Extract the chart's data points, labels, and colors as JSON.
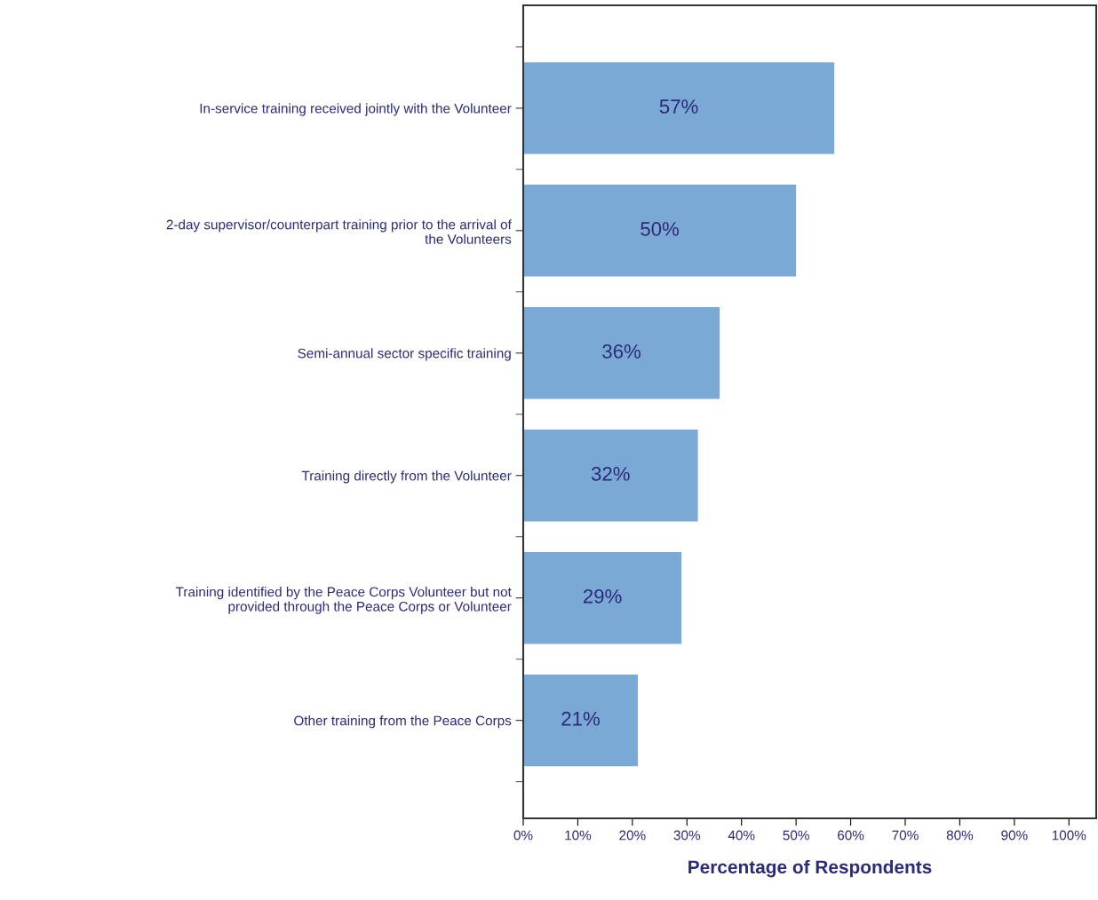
{
  "chart_data": {
    "type": "bar",
    "orientation": "horizontal",
    "categories": [
      "In-service training received jointly with the Volunteer",
      "2-day supervisor/counterpart training prior to the arrival of\nthe Volunteers",
      "Semi-annual sector specific training",
      "Training directly from the Volunteer",
      "Training identified by the Peace Corps Volunteer but not\nprovided through the Peace Corps or Volunteer",
      "Other training from the Peace Corps"
    ],
    "values": [
      57,
      50,
      36,
      32,
      29,
      21
    ],
    "value_labels": [
      "57%",
      "50%",
      "36%",
      "32%",
      "29%",
      "21%"
    ],
    "color": "#7ba9d6",
    "xlabel": "Percentage of Respondents",
    "xlim": [
      0,
      105
    ],
    "xticks": [
      {
        "value": 0,
        "label": "0%"
      },
      {
        "value": 10,
        "label": "10%"
      },
      {
        "value": 20,
        "label": "20%"
      },
      {
        "value": 30,
        "label": "30%"
      },
      {
        "value": 40,
        "label": "40%"
      },
      {
        "value": 50,
        "label": "50%"
      },
      {
        "value": 60,
        "label": "60%"
      },
      {
        "value": 70,
        "label": "70%"
      },
      {
        "value": 80,
        "label": "80%"
      },
      {
        "value": 90,
        "label": "90%"
      },
      {
        "value": 100,
        "label": "100%"
      }
    ],
    "grid": false,
    "legend": false
  }
}
